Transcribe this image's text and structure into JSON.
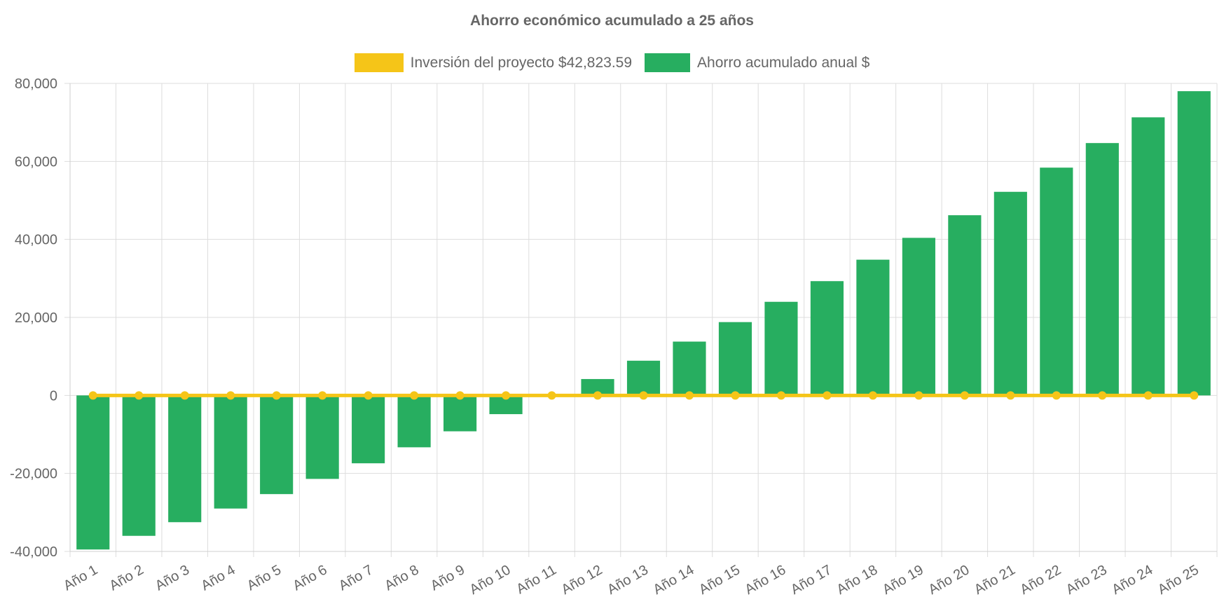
{
  "chart_data": {
    "type": "bar",
    "title": "Ahorro económico acumulado a 25 años",
    "categories": [
      "Año 1",
      "Año 2",
      "Año 3",
      "Año 4",
      "Año 5",
      "Año 6",
      "Año 7",
      "Año 8",
      "Año 9",
      "Año 10",
      "Año 11",
      "Año 12",
      "Año 13",
      "Año 14",
      "Año 15",
      "Año 16",
      "Año 17",
      "Año 18",
      "Año 19",
      "Año 20",
      "Año 21",
      "Año 22",
      "Año 23",
      "Año 24",
      "Año 25"
    ],
    "series": [
      {
        "name": "Inversión del proyecto $42,823.59",
        "type": "line",
        "color": "#f5c518",
        "values": [
          0,
          0,
          0,
          0,
          0,
          0,
          0,
          0,
          0,
          0,
          0,
          0,
          0,
          0,
          0,
          0,
          0,
          0,
          0,
          0,
          0,
          0,
          0,
          0,
          0
        ]
      },
      {
        "name": "Ahorro acumulado anual $",
        "type": "bar",
        "color": "#27ae60",
        "values": [
          -39500,
          -36000,
          -32500,
          -29000,
          -25300,
          -21400,
          -17400,
          -13300,
          -9200,
          -4800,
          0,
          4200,
          8900,
          13800,
          18800,
          24000,
          29300,
          34800,
          40400,
          46200,
          52200,
          58400,
          64700,
          71300,
          78000
        ]
      }
    ],
    "yticks": [
      "80,000",
      "60,000",
      "40,000",
      "20,000",
      "0",
      "-20,000",
      "-40,000"
    ],
    "ylim": [
      -40000,
      80000
    ],
    "grid": true,
    "legend_position": "top"
  }
}
